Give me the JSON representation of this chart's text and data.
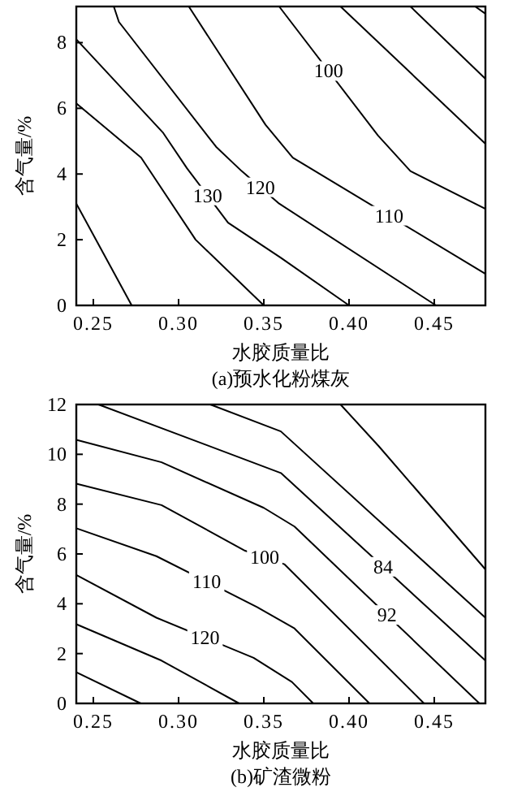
{
  "chart_data": [
    {
      "type": "line",
      "title": "(a)预水化粉煤灰",
      "xlabel": "水胶质量比",
      "ylabel": "含气量/%",
      "xlim": [
        0.24,
        0.48
      ],
      "ylim": [
        0,
        9.1
      ],
      "xticks": [
        {
          "value": 0.25,
          "label": "0.25"
        },
        {
          "value": 0.3,
          "label": "0.30"
        },
        {
          "value": 0.35,
          "label": "0.35"
        },
        {
          "value": 0.4,
          "label": "0.40"
        },
        {
          "value": 0.45,
          "label": "0.45"
        }
      ],
      "yticks": [
        0,
        2,
        4,
        6,
        8
      ],
      "legend": false,
      "grid": false,
      "series": [
        {
          "color": "#000000",
          "x": [
            0.24,
            0.2725
          ],
          "values": [
            3.1,
            0
          ]
        },
        {
          "color": "#000000",
          "x": [
            0.24,
            0.278,
            0.31,
            0.35
          ],
          "values": [
            6.15,
            4.5,
            2.0,
            0
          ]
        },
        {
          "name": "130",
          "color": "#000000",
          "x": [
            0.24,
            0.291,
            0.305,
            0.329,
            0.36,
            0.4
          ],
          "values": [
            8.1,
            5.25,
            4.17,
            2.52,
            1.45,
            0
          ]
        },
        {
          "name": "120",
          "color": "#000000",
          "x": [
            0.262,
            0.265,
            0.322,
            0.337,
            0.359,
            0.451
          ],
          "values": [
            9.1,
            8.63,
            4.83,
            4.09,
            3.1,
            0
          ]
        },
        {
          "name": "110",
          "color": "#000000",
          "x": [
            0.306,
            0.351,
            0.367,
            0.48
          ],
          "values": [
            9.1,
            5.5,
            4.5,
            0.96
          ]
        },
        {
          "name": "100",
          "color": "#000000",
          "x": [
            0.359,
            0.417,
            0.436,
            0.48
          ],
          "values": [
            9.1,
            5.17,
            4.09,
            2.94
          ]
        },
        {
          "color": "#000000",
          "x": [
            0.395,
            0.48
          ],
          "values": [
            9.1,
            4.92
          ]
        },
        {
          "color": "#000000",
          "x": [
            0.436,
            0.48
          ],
          "values": [
            9.1,
            6.9
          ]
        },
        {
          "color": "#000000",
          "x": [
            0.474,
            0.48
          ],
          "values": [
            9.1,
            8.88
          ]
        }
      ]
    },
    {
      "type": "line",
      "title": "(b)矿渣微粉",
      "xlabel": "水胶质量比",
      "ylabel": "含气量/%",
      "xlim": [
        0.24,
        0.48
      ],
      "ylim": [
        0,
        12
      ],
      "xticks": [
        {
          "value": 0.25,
          "label": "0.25"
        },
        {
          "value": 0.3,
          "label": "0.30"
        },
        {
          "value": 0.35,
          "label": "0.35"
        },
        {
          "value": 0.4,
          "label": "0.40"
        },
        {
          "value": 0.45,
          "label": "0.45"
        }
      ],
      "yticks": [
        0,
        2,
        4,
        6,
        8,
        10,
        12
      ],
      "legend": false,
      "grid": false,
      "series": [
        {
          "color": "#000000",
          "x": [
            0.24,
            0.2778
          ],
          "values": [
            1.25,
            0
          ]
        },
        {
          "color": "#000000",
          "x": [
            0.24,
            0.29,
            0.3355
          ],
          "values": [
            3.18,
            1.72,
            0
          ]
        },
        {
          "name": "120",
          "color": "#000000",
          "x": [
            0.24,
            0.287,
            0.344,
            0.3665,
            0.379
          ],
          "values": [
            5.16,
            3.44,
            1.83,
            0.86,
            0
          ]
        },
        {
          "name": "110",
          "color": "#000000",
          "x": [
            0.24,
            0.287,
            0.346,
            0.368,
            0.412
          ],
          "values": [
            7.03,
            5.91,
            3.87,
            3.01,
            0
          ]
        },
        {
          "name": "100",
          "color": "#000000",
          "x": [
            0.24,
            0.29,
            0.339,
            0.362,
            0.444
          ],
          "values": [
            8.82,
            7.96,
            6.13,
            5.59,
            0
          ]
        },
        {
          "name": "92",
          "color": "#000000",
          "x": [
            0.24,
            0.29,
            0.35,
            0.368,
            0.4765
          ],
          "values": [
            10.58,
            9.68,
            7.85,
            7.1,
            0
          ]
        },
        {
          "name": "84",
          "color": "#000000",
          "x": [
            0.253,
            0.36,
            0.48
          ],
          "values": [
            12,
            9.25,
            1.72
          ]
        },
        {
          "color": "#000000",
          "x": [
            0.3186,
            0.36,
            0.48
          ],
          "values": [
            12,
            10.92,
            3.44
          ]
        },
        {
          "color": "#000000",
          "x": [
            0.395,
            0.4175,
            0.48
          ],
          "values": [
            12,
            10.32,
            5.38
          ]
        }
      ]
    }
  ]
}
